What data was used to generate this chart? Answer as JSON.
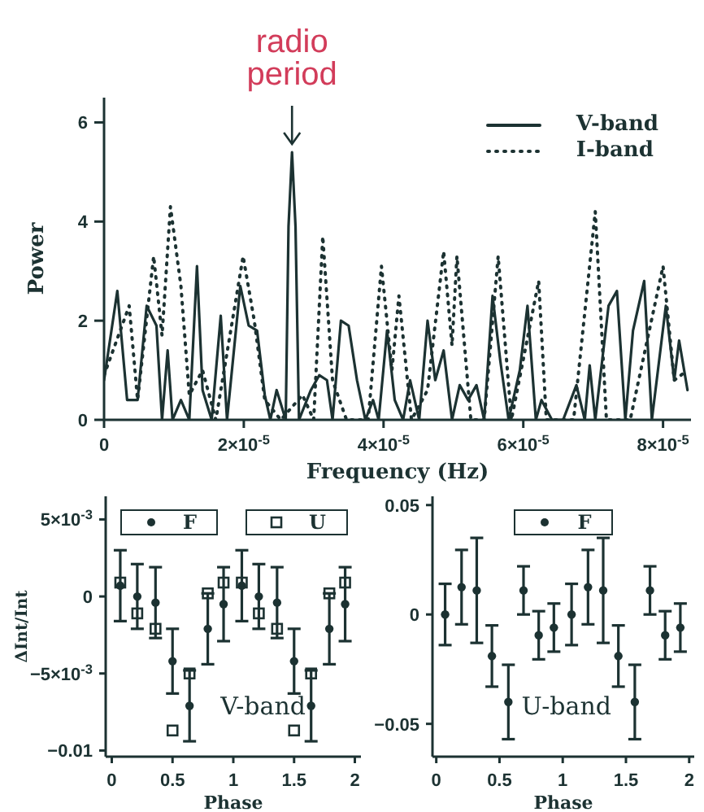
{
  "chart_data": [
    {
      "type": "line",
      "xlabel": "Frequency (Hz)",
      "ylabel": "Power",
      "xlim": [
        0,
        8.4e-05
      ],
      "xticks": [
        0,
        {
          "value": 2e-05,
          "label": "2×10$^{-5}$"
        },
        {
          "value": 4e-05,
          "label": "4×10$^{-5}$"
        },
        {
          "value": 6e-05,
          "label": "6×10$^{-5}$"
        },
        {
          "value": 8e-05,
          "label": "8×10$^{-5}$"
        }
      ],
      "ylim": [
        0,
        6.5
      ],
      "yticks": [
        0,
        2,
        4,
        6
      ],
      "legend": "top right",
      "annotations": [
        {
          "text": "radio period",
          "x": 2.69e-05,
          "y": 5.4
        }
      ],
      "series": [
        {
          "name": "V-band",
          "color": "#1c3232",
          "line_style": "solid",
          "x": [
            0,
            1.9e-06,
            3.3e-06,
            4.8e-06,
            6.1e-06,
            7.5e-06,
            8.3e-06,
            9.1e-06,
            9.8e-06,
            1.1e-05,
            1.22e-05,
            1.33e-05,
            1.41e-05,
            1.54e-05,
            1.67e-05,
            1.76e-05,
            1.95e-05,
            2.07e-05,
            2.19e-05,
            2.3e-05,
            2.38e-05,
            2.47e-05,
            2.6e-05,
            2.64e-05,
            2.69e-05,
            2.74e-05,
            2.79e-05,
            2.96e-05,
            3.08e-05,
            3.19e-05,
            3.27e-05,
            3.39e-05,
            3.5e-05,
            3.62e-05,
            3.74e-05,
            3.85e-05,
            3.93e-05,
            4.05e-05,
            4.16e-05,
            4.28e-05,
            4.38e-05,
            4.51e-05,
            4.63e-05,
            4.74e-05,
            4.86e-05,
            4.98e-05,
            5.09e-05,
            5.21e-05,
            5.33e-05,
            5.44e-05,
            5.56e-05,
            5.67e-05,
            5.79e-05,
            5.95e-05,
            6.06e-05,
            6.18e-05,
            6.26e-05,
            6.41e-05,
            6.57e-05,
            6.76e-05,
            6.88e-05,
            6.95e-05,
            7.03e-05,
            7.22e-05,
            7.34e-05,
            7.46e-05,
            7.57e-05,
            7.73e-05,
            7.84e-05,
            8.04e-05,
            8.16e-05,
            8.23e-05,
            8.35e-05
          ],
          "values": [
            0.8,
            2.6,
            0.4,
            0.4,
            2.3,
            1.9,
            0,
            1.4,
            0,
            0.4,
            0,
            3.1,
            0.6,
            0,
            2.1,
            0,
            2.7,
            1.9,
            1.8,
            0.5,
            0,
            0.6,
            0,
            3.9,
            5.4,
            3.9,
            0,
            0.6,
            0.9,
            0.8,
            0,
            2.0,
            1.9,
            0.8,
            0,
            0.4,
            0,
            1.8,
            0.4,
            0,
            0.8,
            0,
            2.0,
            0.8,
            1.4,
            0,
            0.7,
            0.4,
            0.7,
            0,
            2.5,
            1.2,
            0,
            1.0,
            2.3,
            0,
            0.4,
            0,
            0,
            0.7,
            0,
            1.1,
            0,
            2.3,
            2.6,
            0,
            1.8,
            2.8,
            0,
            2.3,
            0.8,
            1.6,
            0.6
          ]
        },
        {
          "name": "I-band",
          "color": "#1c3232",
          "line_style": "dotted",
          "x": [
            0,
            3.6e-06,
            4.8e-06,
            7.1e-06,
            8.3e-06,
            9.5e-06,
            1.1e-05,
            1.22e-05,
            1.41e-05,
            1.6e-05,
            1.99e-05,
            2.15e-05,
            2.3e-05,
            2.53e-05,
            2.84e-05,
            3e-05,
            3.13e-05,
            3.27e-05,
            3.47e-05,
            3.78e-05,
            3.97e-05,
            4.12e-05,
            4.22e-05,
            4.4e-05,
            4.63e-05,
            4.86e-05,
            4.98e-05,
            5.05e-05,
            5.25e-05,
            5.44e-05,
            5.64e-05,
            5.83e-05,
            6.22e-05,
            6.33e-05,
            6.72e-05,
            7.03e-05,
            7.19e-05,
            7.53e-05,
            8e-05,
            8.16e-05,
            8.35e-05
          ],
          "values": [
            0.9,
            2.3,
            0.4,
            3.3,
            1.7,
            4.3,
            2.7,
            0.5,
            1.0,
            0,
            3.3,
            2.0,
            0.4,
            0,
            0.5,
            0,
            3.7,
            0.8,
            0,
            0,
            3.1,
            1.0,
            2.5,
            0,
            0.6,
            3.4,
            1.5,
            3.3,
            0,
            0,
            3.3,
            0,
            2.8,
            0,
            0,
            4.2,
            0,
            0,
            3.1,
            0.8,
            1.0
          ]
        }
      ]
    },
    {
      "type": "scatter",
      "xlabel": "Phase",
      "ylabel": "ΔInt/Int",
      "xlim": [
        -0.05,
        2.05
      ],
      "xticks": [
        0,
        0.5,
        1,
        1.5,
        2
      ],
      "ylim": [
        -0.0104,
        0.0065
      ],
      "yticks": [
        {
          "value": 0.005,
          "label": "5×10$^{-3}$"
        },
        0,
        {
          "value": -0.005,
          "label": "−5×10$^{-3}$"
        },
        {
          "value": -0.01,
          "label": "−0.01"
        }
      ],
      "legend": "top",
      "annotations": [
        "V-band"
      ],
      "series": [
        {
          "name": "F",
          "color": "#1c3232",
          "marker": "circle",
          "x": [
            0.07,
            0.21,
            0.36,
            0.5,
            0.64,
            0.79,
            0.92,
            1.07,
            1.21,
            1.36,
            1.5,
            1.64,
            1.79,
            1.92
          ],
          "values": [
            0.0007,
            0,
            -0.0004,
            -0.0042,
            -0.0071,
            -0.0021,
            -0.0005,
            0.0007,
            0,
            -0.0004,
            -0.0042,
            -0.0071,
            -0.0021,
            -0.0005
          ],
          "errors": [
            0.0023,
            0.0021,
            0.0023,
            0.0021,
            0.0023,
            0.0023,
            0.0024,
            0.0023,
            0.0021,
            0.0023,
            0.0021,
            0.0023,
            0.0023,
            0.0024
          ]
        },
        {
          "name": "U",
          "color": "#1c3232",
          "marker": "square",
          "x": [
            0.07,
            0.21,
            0.36,
            0.5,
            0.64,
            0.79,
            0.92,
            1.07,
            1.21,
            1.36,
            1.5,
            1.64,
            1.79,
            1.92
          ],
          "values": [
            0.0009,
            -0.0011,
            -0.0021,
            -0.0087,
            -0.005,
            0.0002,
            0.0009,
            0.0009,
            -0.0011,
            -0.0021,
            -0.0087,
            -0.005,
            0.0002,
            0.0009
          ]
        }
      ]
    },
    {
      "type": "scatter",
      "xlabel": "Phase",
      "xlim": [
        -0.03,
        2.04
      ],
      "xticks": [
        0,
        0.5,
        1,
        1.5,
        2
      ],
      "ylim": [
        -0.065,
        0.054
      ],
      "yticks": [
        0.05,
        0,
        {
          "value": -0.05,
          "label": "−0.05"
        }
      ],
      "legend": "top",
      "annotations": [
        "U-band"
      ],
      "series": [
        {
          "name": "F",
          "color": "#1c3232",
          "marker": "circle",
          "x": [
            0.07,
            0.2,
            0.32,
            0.44,
            0.57,
            0.69,
            0.81,
            0.93,
            1.07,
            1.2,
            1.32,
            1.44,
            1.57,
            1.69,
            1.81,
            1.93
          ],
          "values": [
            0,
            0.0125,
            0.011,
            -0.019,
            -0.04,
            0.011,
            -0.0095,
            -0.006,
            0,
            0.0125,
            0.011,
            -0.019,
            -0.04,
            0.011,
            -0.0095,
            -0.006
          ],
          "errors": [
            0.014,
            0.017,
            0.024,
            0.014,
            0.017,
            0.011,
            0.011,
            0.011,
            0.014,
            0.017,
            0.024,
            0.014,
            0.017,
            0.011,
            0.011,
            0.011
          ]
        }
      ]
    }
  ]
}
